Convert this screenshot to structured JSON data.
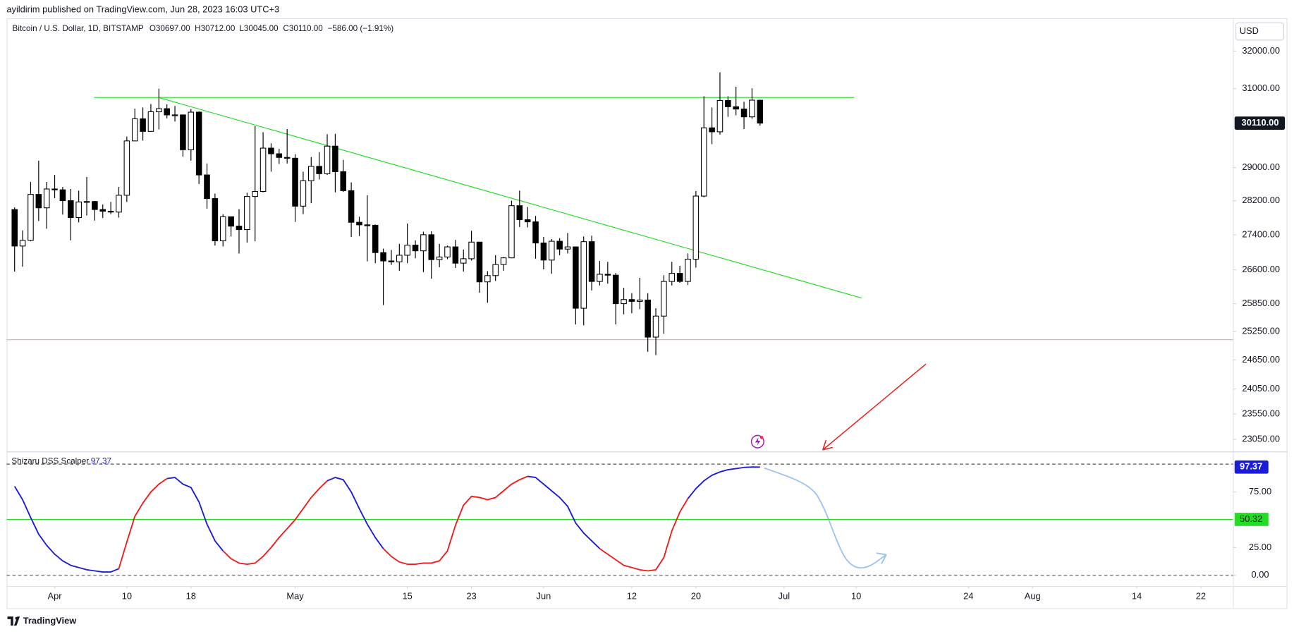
{
  "header": {
    "published": "ayildirim published on TradingView.com, Jun 28, 2023 16:03 UTC+3"
  },
  "footer": {
    "brand": "TradingView"
  },
  "chart_data": [
    {
      "type": "candlestick",
      "symbol": "Bitcoin / U.S. Dollar, 1D, BITSTAMP",
      "ohlc_legend": [
        "O30697.00",
        "H30712.00",
        "L30045.00",
        "C30110.00",
        "−586.00 (−1.91%)"
      ],
      "currency": "USD",
      "x": [
        "2023-03-27",
        "2023-03-28",
        "2023-03-29",
        "2023-03-30",
        "2023-03-31",
        "2023-04-01",
        "2023-04-02",
        "2023-04-03",
        "2023-04-04",
        "2023-04-05",
        "2023-04-06",
        "2023-04-07",
        "2023-04-08",
        "2023-04-09",
        "2023-04-10",
        "2023-04-11",
        "2023-04-12",
        "2023-04-13",
        "2023-04-14",
        "2023-04-15",
        "2023-04-16",
        "2023-04-17",
        "2023-04-18",
        "2023-04-19",
        "2023-04-20",
        "2023-04-21",
        "2023-04-22",
        "2023-04-23",
        "2023-04-24",
        "2023-04-25",
        "2023-04-26",
        "2023-04-27",
        "2023-04-28",
        "2023-04-29",
        "2023-04-30",
        "2023-05-01",
        "2023-05-02",
        "2023-05-03",
        "2023-05-04",
        "2023-05-05",
        "2023-05-06",
        "2023-05-07",
        "2023-05-08",
        "2023-05-09",
        "2023-05-10",
        "2023-05-11",
        "2023-05-12",
        "2023-05-13",
        "2023-05-14",
        "2023-05-15",
        "2023-05-16",
        "2023-05-17",
        "2023-05-18",
        "2023-05-19",
        "2023-05-20",
        "2023-05-21",
        "2023-05-22",
        "2023-05-23",
        "2023-05-24",
        "2023-05-25",
        "2023-05-26",
        "2023-05-27",
        "2023-05-28",
        "2023-05-29",
        "2023-05-30",
        "2023-05-31",
        "2023-06-01",
        "2023-06-02",
        "2023-06-03",
        "2023-06-04",
        "2023-06-05",
        "2023-06-06",
        "2023-06-07",
        "2023-06-08",
        "2023-06-09",
        "2023-06-10",
        "2023-06-11",
        "2023-06-12",
        "2023-06-13",
        "2023-06-14",
        "2023-06-15",
        "2023-06-16",
        "2023-06-17",
        "2023-06-18",
        "2023-06-19",
        "2023-06-20",
        "2023-06-21",
        "2023-06-22",
        "2023-06-23",
        "2023-06-24",
        "2023-06-25",
        "2023-06-26",
        "2023-06-27",
        "2023-06-28"
      ],
      "open": [
        27990,
        27140,
        27270,
        28350,
        28030,
        28480,
        28460,
        28200,
        27800,
        28170,
        28180,
        27990,
        27950,
        27930,
        28330,
        29660,
        30220,
        29900,
        30400,
        30480,
        30320,
        30320,
        29440,
        30390,
        28820,
        28250,
        27260,
        27820,
        27600,
        27520,
        28300,
        28420,
        29480,
        29340,
        29250,
        29230,
        28070,
        28680,
        29030,
        28850,
        29530,
        28900,
        28440,
        27690,
        27630,
        27620,
        26990,
        26800,
        26780,
        26930,
        27160,
        27030,
        27400,
        26830,
        26890,
        27120,
        26750,
        26850,
        27230,
        26330,
        26470,
        26720,
        26870,
        28080,
        27750,
        27700,
        27210,
        26820,
        27250,
        27070,
        27120,
        25750,
        27240,
        26340,
        26500,
        26480,
        25850,
        25940,
        25900,
        25930,
        25130,
        25580,
        26340,
        26520,
        26340,
        26840,
        28310,
        29990,
        29890,
        30690,
        30530,
        30470,
        30270,
        30697
      ],
      "high": [
        28040,
        27500,
        28650,
        29170,
        28650,
        28820,
        28530,
        28480,
        28440,
        28770,
        28190,
        28110,
        28170,
        28530,
        29770,
        30480,
        30510,
        30600,
        31000,
        30590,
        30550,
        30330,
        30470,
        30410,
        29100,
        28370,
        27880,
        27820,
        28000,
        28390,
        30030,
        29880,
        29600,
        29460,
        29960,
        29330,
        28900,
        29260,
        29380,
        29830,
        29840,
        29190,
        28640,
        27820,
        28330,
        27640,
        27080,
        27050,
        27190,
        27660,
        27270,
        27470,
        27480,
        27190,
        27150,
        27280,
        27060,
        27490,
        27230,
        26570,
        26930,
        26890,
        28200,
        28440,
        28050,
        27840,
        27350,
        27300,
        27320,
        27440,
        27130,
        27360,
        27380,
        26800,
        26780,
        26530,
        26200,
        26080,
        26420,
        26080,
        25750,
        26480,
        26780,
        26690,
        26970,
        28430,
        30800,
        30510,
        31430,
        30800,
        31050,
        30660,
        31010,
        30712
      ],
      "low": [
        26560,
        26670,
        27250,
        27720,
        27540,
        28260,
        27870,
        27270,
        27690,
        27850,
        27730,
        27790,
        27880,
        27800,
        28170,
        29660,
        29670,
        29890,
        29950,
        30230,
        30150,
        29270,
        29170,
        28600,
        28010,
        27150,
        27130,
        27360,
        26970,
        27220,
        27250,
        28400,
        28900,
        29090,
        29100,
        27700,
        27880,
        28140,
        28710,
        28820,
        28400,
        28410,
        27350,
        27370,
        26790,
        26750,
        25820,
        26710,
        26580,
        26750,
        26860,
        26550,
        26400,
        26660,
        26840,
        26640,
        26560,
        26810,
        26090,
        25870,
        26350,
        26580,
        26860,
        27580,
        27570,
        26850,
        26610,
        26510,
        26930,
        26970,
        25400,
        25380,
        26140,
        26250,
        26290,
        25400,
        25620,
        25640,
        25730,
        24820,
        24750,
        25200,
        26250,
        26310,
        26260,
        26650,
        28280,
        29580,
        29820,
        30270,
        30310,
        29960,
        30220,
        30045
      ],
      "close": [
        27140,
        27270,
        28350,
        28030,
        28480,
        28460,
        28200,
        27800,
        28170,
        28180,
        27990,
        27950,
        27930,
        28330,
        29660,
        30220,
        29900,
        30400,
        30480,
        30320,
        30320,
        29440,
        30390,
        28820,
        28250,
        27260,
        27820,
        27600,
        27520,
        28300,
        28420,
        29480,
        29340,
        29250,
        29230,
        28070,
        28680,
        29030,
        28850,
        29530,
        28900,
        28440,
        27690,
        27630,
        27620,
        26990,
        26800,
        26780,
        26930,
        27160,
        27030,
        27400,
        26830,
        26890,
        27120,
        26750,
        26850,
        27230,
        26330,
        26470,
        26720,
        26870,
        28080,
        27750,
        27700,
        27210,
        26820,
        27250,
        27070,
        27120,
        25750,
        27240,
        26340,
        26500,
        26480,
        25850,
        25940,
        25900,
        25930,
        25130,
        25580,
        26340,
        26520,
        26340,
        26840,
        28310,
        29990,
        29890,
        30690,
        30530,
        30470,
        30270,
        30700,
        30110
      ],
      "up_color": "#ffffff",
      "down_color": "#000000",
      "last_value_label": "30110.00",
      "log_scale": true,
      "xlim": [
        "2023-03-26",
        "2023-08-26"
      ],
      "xticks": [
        {
          "value": "2023-04-01",
          "label": "Apr"
        },
        {
          "value": "2023-04-10",
          "label": "10"
        },
        {
          "value": "2023-04-18",
          "label": "18"
        },
        {
          "value": "2023-05-01",
          "label": "May"
        },
        {
          "value": "2023-05-15",
          "label": "15"
        },
        {
          "value": "2023-05-23",
          "label": "23"
        },
        {
          "value": "2023-06-01",
          "label": "Jun"
        },
        {
          "value": "2023-06-12",
          "label": "12"
        },
        {
          "value": "2023-06-20",
          "label": "20"
        },
        {
          "value": "2023-07-01",
          "label": "Jul"
        },
        {
          "value": "2023-07-10",
          "label": "10"
        },
        {
          "value": "2023-07-24",
          "label": "24"
        },
        {
          "value": "2023-08-01",
          "label": "Aug"
        },
        {
          "value": "2023-08-14",
          "label": "14"
        },
        {
          "value": "2023-08-22",
          "label": "22"
        }
      ],
      "ylim": [
        22830,
        32900
      ],
      "yticks": [
        {
          "value": 32000,
          "label": "32000.00"
        },
        {
          "value": 31000,
          "label": "31000.00"
        },
        {
          "value": 29000,
          "label": "29000.00"
        },
        {
          "value": 28200,
          "label": "28200.00"
        },
        {
          "value": 27400,
          "label": "27400.00"
        },
        {
          "value": 26600,
          "label": "26600.00"
        },
        {
          "value": 25850,
          "label": "25850.00"
        },
        {
          "value": 25250,
          "label": "25250.00"
        },
        {
          "value": 24650,
          "label": "24650.00"
        },
        {
          "value": 24050,
          "label": "24050.00"
        },
        {
          "value": 23550,
          "label": "23550.00"
        },
        {
          "value": 23050,
          "label": "23050.00"
        }
      ]
    },
    {
      "type": "line",
      "series": [
        {
          "name": "Shizaru DSS Scalper",
          "values": [
            80,
            68,
            52,
            37,
            27,
            19,
            13,
            9,
            7,
            5,
            4,
            3,
            3,
            6,
            30,
            53,
            65,
            75,
            82,
            87,
            88,
            82,
            79,
            66,
            46,
            31,
            22,
            15,
            11,
            10,
            11,
            17,
            25,
            34,
            42,
            50,
            60,
            70,
            78,
            85,
            88,
            86,
            75,
            60,
            46,
            34,
            24,
            17,
            12,
            10,
            10,
            11,
            11,
            13,
            22,
            45,
            63,
            71,
            70,
            68,
            70,
            76,
            82,
            86,
            89,
            88,
            82,
            76,
            70,
            62,
            47,
            38,
            31,
            24,
            19,
            14,
            9,
            7,
            5,
            4,
            5,
            16,
            40,
            57,
            69,
            78,
            85,
            90,
            93,
            95,
            96,
            97,
            97.4,
            97.37
          ],
          "point_colors": [
            "#1c1cd8",
            "#1c1cd8",
            "#1c1cd8",
            "#1c1cd8",
            "#1c1cd8",
            "#1c1cd8",
            "#1c1cd8",
            "#1c1cd8",
            "#1c1cd8",
            "#1c1cd8",
            "#1c1cd8",
            "#1c1cd8",
            "#1c1cd8",
            "#1c1cd8",
            "#f01c1c",
            "#f01c1c",
            "#f01c1c",
            "#f01c1c",
            "#f01c1c",
            "#f01c1c",
            "#1c1cd8",
            "#1c1cd8",
            "#1c1cd8",
            "#1c1cd8",
            "#1c1cd8",
            "#1c1cd8",
            "#1c1cd8",
            "#f01c1c",
            "#f01c1c",
            "#f01c1c",
            "#f01c1c",
            "#f01c1c",
            "#f01c1c",
            "#f01c1c",
            "#f01c1c",
            "#f01c1c",
            "#f01c1c",
            "#f01c1c",
            "#f01c1c",
            "#f01c1c",
            "#1c1cd8",
            "#1c1cd8",
            "#1c1cd8",
            "#1c1cd8",
            "#1c1cd8",
            "#1c1cd8",
            "#1c1cd8",
            "#f01c1c",
            "#f01c1c",
            "#f01c1c",
            "#f01c1c",
            "#f01c1c",
            "#f01c1c",
            "#f01c1c",
            "#f01c1c",
            "#f01c1c",
            "#f01c1c",
            "#f01c1c",
            "#f01c1c",
            "#f01c1c",
            "#f01c1c",
            "#f01c1c",
            "#f01c1c",
            "#f01c1c",
            "#f01c1c",
            "#1c1cd8",
            "#1c1cd8",
            "#1c1cd8",
            "#1c1cd8",
            "#1c1cd8",
            "#1c1cd8",
            "#1c1cd8",
            "#1c1cd8",
            "#1c1cd8",
            "#f01c1c",
            "#f01c1c",
            "#f01c1c",
            "#f01c1c",
            "#f01c1c",
            "#f01c1c",
            "#f01c1c",
            "#f01c1c",
            "#f01c1c",
            "#f01c1c",
            "#f01c1c",
            "#1c1cd8",
            "#1c1cd8",
            "#1c1cd8",
            "#1c1cd8",
            "#1c1cd8",
            "#1c1cd8",
            "#1c1cd8",
            "#1c1cd8",
            "#1c1cd8"
          ],
          "last_value_label": "97.37",
          "label_color": "#1c1cd8"
        }
      ],
      "levels": [
        {
          "value": 50.32,
          "label": "50.32",
          "color": "#22dd22",
          "style": "solid"
        },
        {
          "value": 100,
          "color": "#555555",
          "style": "dashed"
        },
        {
          "value": 0,
          "color": "#555555",
          "style": "dashed"
        }
      ],
      "ylim": [
        -9.65,
        110.6
      ],
      "yticks": [
        {
          "value": 75,
          "label": "75.00"
        },
        {
          "value": 25,
          "label": "25.00"
        },
        {
          "value": 0,
          "label": "0.00"
        }
      ]
    }
  ]
}
